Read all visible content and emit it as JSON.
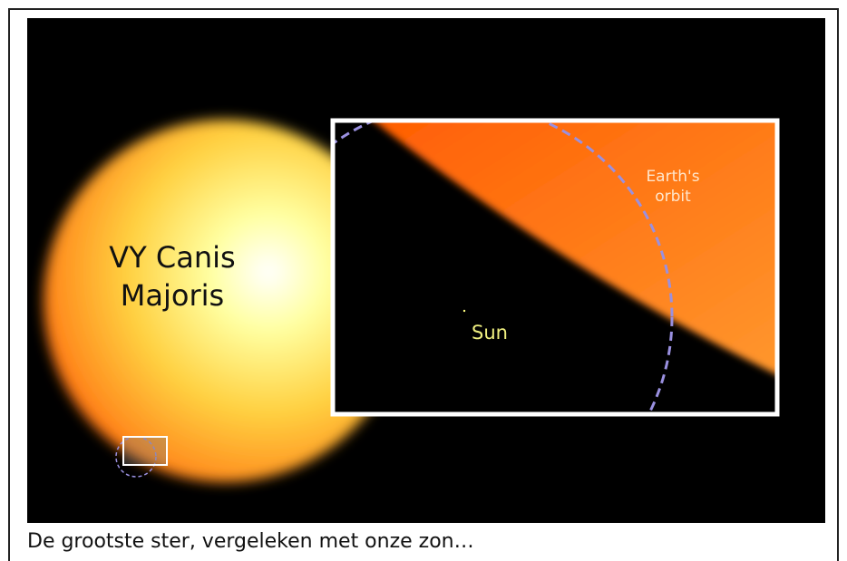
{
  "image": {
    "star_label": [
      "VY Canis",
      "Majoris"
    ],
    "orbit_label": [
      "Earth's",
      "orbit"
    ],
    "sun_label": "Sun"
  },
  "caption": "De grootste ster, vergeleken met onze zon…"
}
